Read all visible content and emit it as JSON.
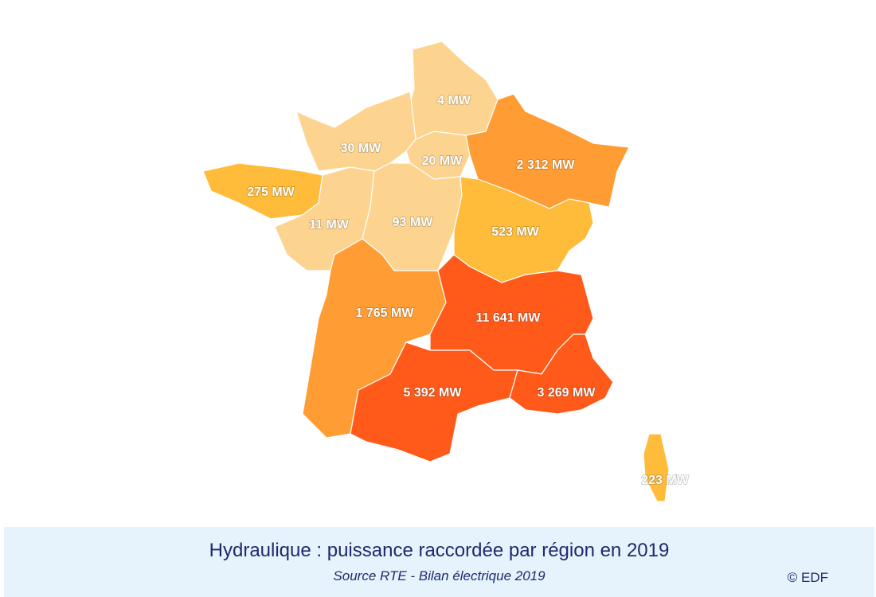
{
  "map": {
    "regions": [
      {
        "label": "4 MW",
        "color": "#fdd48f"
      },
      {
        "label": "30 MW",
        "color": "#fdd48f"
      },
      {
        "label": "20 MW",
        "color": "#fdd48f"
      },
      {
        "label": "2 312 MW",
        "color": "#ff9c33"
      },
      {
        "label": "275 MW",
        "color": "#ffbb3a"
      },
      {
        "label": "11 MW",
        "color": "#fdd48f"
      },
      {
        "label": "93 MW",
        "color": "#fdd48f"
      },
      {
        "label": "523 MW",
        "color": "#ffbb3a"
      },
      {
        "label": "1 765 MW",
        "color": "#ff9c33"
      },
      {
        "label": "11 641 MW",
        "color": "#ff5a1a"
      },
      {
        "label": "5 392 MW",
        "color": "#ff5a1a"
      },
      {
        "label": "3 269 MW",
        "color": "#ff5a1a"
      },
      {
        "label": "223 MW",
        "color": "#ffbb3a"
      }
    ]
  },
  "footer": {
    "title": "Hydraulique : puissance raccordée par région en 2019",
    "source": "Source RTE - Bilan électrique 2019",
    "credit": "© EDF"
  }
}
